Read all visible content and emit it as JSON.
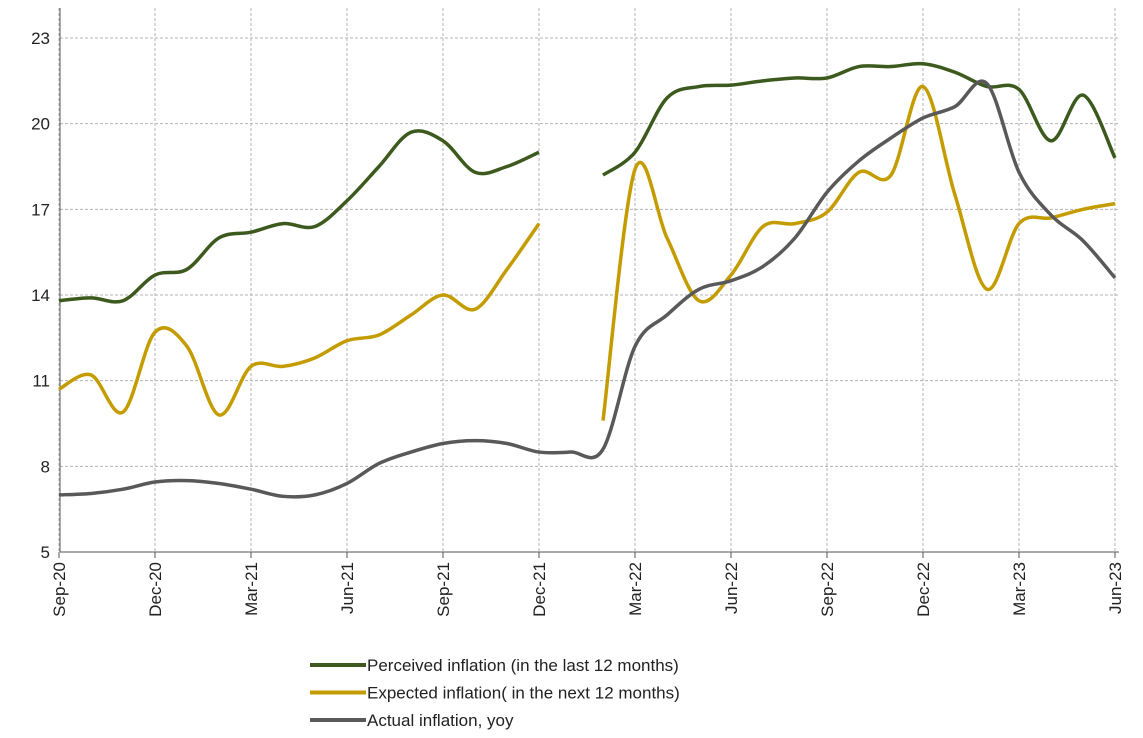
{
  "chart_data": {
    "type": "line",
    "categories": [
      "Sep-20",
      null,
      null,
      "Dec-20",
      null,
      null,
      "Mar-21",
      null,
      null,
      "Jun-21",
      null,
      null,
      "Sep-21",
      null,
      null,
      "Dec-21",
      null,
      null,
      "Mar-22",
      null,
      null,
      "Jun-22",
      null,
      null,
      "Sep-22",
      null,
      null,
      "Dec-22",
      null,
      null,
      "Mar-23",
      null,
      null,
      "Jun-23"
    ],
    "series": [
      {
        "name": "Perceived inflation (in the last 12 months)",
        "color": "#3d5a1e",
        "values": [
          13.8,
          13.9,
          13.8,
          14.7,
          14.9,
          16.0,
          16.2,
          16.5,
          16.4,
          17.3,
          18.5,
          19.7,
          19.4,
          18.3,
          18.5,
          19.0,
          null,
          18.2,
          19.0,
          20.9,
          21.3,
          21.35,
          21.5,
          21.6,
          21.6,
          22.0,
          22.0,
          22.1,
          21.8,
          21.3,
          21.2,
          19.4,
          21.0,
          18.8
        ]
      },
      {
        "name": "Expected inflation( in the next 12 months)",
        "color": "#c49c00",
        "values": [
          10.7,
          11.2,
          9.9,
          12.7,
          12.2,
          9.8,
          11.5,
          11.5,
          11.8,
          12.4,
          12.6,
          13.3,
          14.0,
          13.5,
          14.9,
          16.5,
          null,
          9.6,
          18.4,
          16.0,
          13.8,
          14.7,
          16.4,
          16.5,
          16.9,
          18.3,
          18.2,
          21.3,
          17.5,
          14.2,
          16.5,
          16.7,
          17.0,
          17.2
        ]
      },
      {
        "name": "Actual inflation, yoy",
        "color": "#595959",
        "values": [
          7.0,
          7.05,
          7.2,
          7.45,
          7.5,
          7.4,
          7.2,
          6.95,
          7.0,
          7.4,
          8.1,
          8.5,
          8.8,
          8.9,
          8.8,
          8.5,
          8.5,
          8.6,
          12.2,
          13.3,
          14.2,
          14.5,
          15.0,
          16.0,
          17.6,
          18.7,
          19.5,
          20.2,
          20.6,
          21.4,
          18.3,
          16.8,
          15.9,
          14.6
        ]
      }
    ],
    "ylim": [
      5,
      23
    ],
    "yticks": [
      5,
      8,
      11,
      14,
      17,
      20,
      23
    ],
    "grid": true
  }
}
